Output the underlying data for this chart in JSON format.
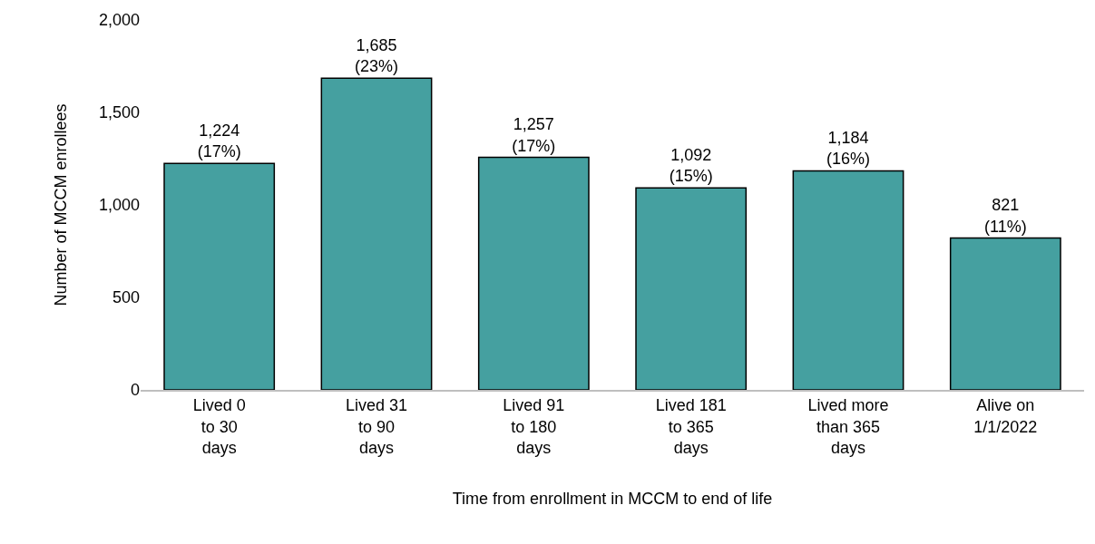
{
  "chart_data": {
    "type": "bar",
    "categories": [
      "Lived 0\nto 30\ndays",
      "Lived 31\nto 90\ndays",
      "Lived 91\nto 180\ndays",
      "Lived 181\nto 365\ndays",
      "Lived more\nthan 365\ndays",
      "Alive on\n1/1/2022"
    ],
    "values": [
      1224,
      1685,
      1257,
      1092,
      1184,
      821
    ],
    "value_labels": [
      "1,224\n(17%)",
      "1,685\n(23%)",
      "1,257\n(17%)",
      "1,092\n(15%)",
      "1,184\n(16%)",
      "821\n(11%)"
    ],
    "color": "#45a0a0",
    "xlabel": "Time from enrollment in MCCM to end of life",
    "ylabel": "Number of MCCM enrollees",
    "ylim": [
      0,
      2000
    ],
    "yticks": [
      0,
      {
        "value": 500,
        "label": "500"
      },
      {
        "value": 1000,
        "label": "1,000"
      },
      {
        "value": 1500,
        "label": "1,500"
      },
      {
        "value": 2000,
        "label": "2,000"
      }
    ]
  }
}
